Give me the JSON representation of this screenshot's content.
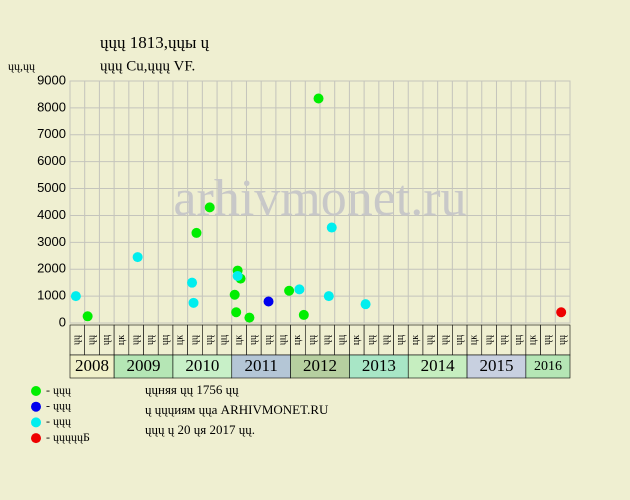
{
  "chart_data": {
    "type": "scatter",
    "title": "ųųų 1813,ųųы ų",
    "subtitle": "ųųų Cu,ųųų VF.",
    "y_label": "ųų,ųų",
    "watermark": "arhivmonet.ru",
    "xlim": [
      0,
      34
    ],
    "ylim": [
      0,
      9000
    ],
    "yticks": [
      0,
      1000,
      2000,
      3000,
      4000,
      5000,
      6000,
      7000,
      8000,
      9000
    ],
    "grid": true,
    "columns": [
      "ųų",
      "ųų",
      "ųц",
      "цк",
      "ųų",
      "ųų",
      "ųц",
      "цк",
      "ųų",
      "ųų",
      "ųц",
      "цк",
      "ųų",
      "ųų",
      "ųц",
      "цк",
      "ųų",
      "ųų",
      "ųц",
      "цк",
      "ųų",
      "ųų",
      "ųц",
      "цк",
      "ųų",
      "ųų",
      "ųц",
      "цк",
      "ųų",
      "ųų",
      "ųц",
      "цк",
      "ųų",
      "ųų"
    ],
    "years": [
      {
        "label": "2008",
        "columns": 3,
        "color": "#f0f0c8"
      },
      {
        "label": "2009",
        "columns": 4,
        "color": "#b5e6b5"
      },
      {
        "label": "2010",
        "columns": 4,
        "color": "#c8f0c8"
      },
      {
        "label": "2011",
        "columns": 4,
        "color": "#b4c6d6"
      },
      {
        "label": "2012",
        "columns": 4,
        "color": "#b6cfa0"
      },
      {
        "label": "2013",
        "columns": 4,
        "color": "#a8e6c6"
      },
      {
        "label": "2014",
        "columns": 4,
        "color": "#c6eec0"
      },
      {
        "label": "2015",
        "columns": 4,
        "color": "#c8d0e0"
      },
      {
        "label": "2016",
        "columns": 3,
        "color": "#b5e6b5"
      }
    ],
    "series": [
      {
        "name": "- ųųų",
        "color": "#00ee00",
        "x": [
          1.2,
          8.6,
          9.5,
          11.4,
          11.6,
          11.2,
          11.3,
          12.2,
          14.9,
          15.9,
          16.9
        ],
        "values": [
          250,
          3350,
          4300,
          1950,
          1650,
          1050,
          400,
          200,
          1200,
          300,
          8350
        ]
      },
      {
        "name": "- ųųų",
        "color": "#0000ee",
        "x": [
          13.5
        ],
        "values": [
          800
        ]
      },
      {
        "name": "- ųųų",
        "color": "#00eeee",
        "x": [
          0.4,
          4.6,
          8.3,
          8.4,
          11.4,
          15.6,
          17.8,
          17.6,
          20.1
        ],
        "values": [
          1000,
          2450,
          1500,
          750,
          1750,
          1250,
          3550,
          1000,
          700
        ]
      },
      {
        "name": "- ųųųųųБ",
        "color": "#ee0000",
        "x": [
          33.4
        ],
        "values": [
          400
        ]
      }
    ],
    "notes": [
      "ųųняя ųų 1756 ųų",
      "ų ųųųиям ųųа ARHIVMONET.RU",
      "ųųų ų 20 ųя 2017 ųų."
    ]
  }
}
